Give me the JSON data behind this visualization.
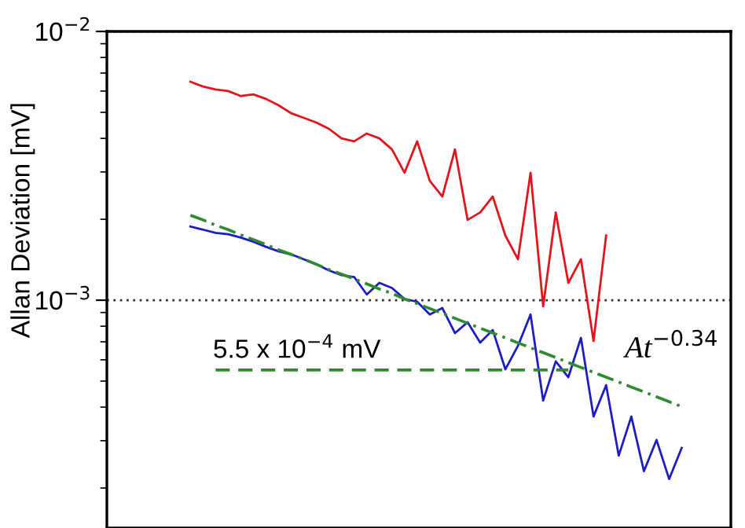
{
  "chart_data": {
    "type": "line",
    "ylabel": "Allan Deviation [mV]",
    "log": "y",
    "grid": "y",
    "tick_labels": "y",
    "categories": [
      null,
      null,
      null,
      null,
      null,
      null,
      null,
      null,
      null,
      null,
      null,
      null,
      null,
      null,
      null,
      null,
      null,
      null,
      null,
      null,
      null,
      null,
      null,
      null,
      null,
      null,
      null,
      null,
      null,
      null,
      null,
      null,
      null,
      null,
      null,
      null,
      null,
      null,
      null,
      null
    ],
    "ylim": [
      0.000142,
      0.01
    ],
    "yticks": [
      {
        "value": 0.01,
        "label": "10$^{−2}$"
      },
      {
        "value": 0.001,
        "label": "10$^{−3}$"
      }
    ],
    "series": [
      {
        "color": "#e3141c",
        "line_style": "solid",
        "values": [
          0.0065,
          0.00624,
          0.00608,
          0.006,
          0.00575,
          0.00583,
          0.00561,
          0.00531,
          0.00496,
          0.00477,
          0.00458,
          0.00434,
          0.004,
          0.0039,
          0.00417,
          0.004,
          0.00364,
          0.00298,
          0.0039,
          0.00278,
          0.00243,
          0.00364,
          0.00199,
          0.00212,
          0.00243,
          0.00174,
          0.00142,
          0.00298,
          0.000948,
          0.00212,
          0.00116,
          0.00142,
          0.000705,
          0.00174,
          null,
          null,
          null,
          null,
          null,
          null
        ]
      },
      {
        "color": "#1c1cc8",
        "line_style": "solid",
        "values": [
          0.00188,
          0.00183,
          0.00178,
          0.00176,
          0.00171,
          0.00165,
          0.00158,
          0.00152,
          0.00148,
          0.00142,
          0.00136,
          0.00129,
          0.00124,
          0.00122,
          0.00105,
          0.00116,
          0.00111,
          0.00101,
          0.000987,
          0.000885,
          0.000935,
          0.000754,
          0.000828,
          0.000695,
          0.000774,
          0.000553,
          0.000676,
          0.000885,
          0.000423,
          0.000592,
          0.000517,
          0.000724,
          0.000369,
          0.000483,
          0.000264,
          0.000369,
          0.000231,
          0.000302,
          0.000216,
          0.000282
        ]
      },
      {
        "color": "#2e8b2e",
        "line_style": "dashdot",
        "values": [
          0.00207,
          0.00199,
          0.0019,
          0.00183,
          0.00175,
          0.00168,
          0.00161,
          0.00154,
          0.00148,
          0.00142,
          0.00136,
          0.0013,
          0.00125,
          0.0012,
          0.00115,
          0.0011,
          0.00106,
          0.00101,
          0.000971,
          0.000931,
          0.000893,
          0.000856,
          0.000821,
          0.000787,
          0.000755,
          0.000724,
          0.000694,
          0.000665,
          0.000638,
          0.000612,
          0.000586,
          0.000562,
          0.000539,
          0.000517,
          0.000496,
          0.000475,
          0.000456,
          0.000437,
          0.000419,
          0.000402
        ]
      },
      {
        "color": "#2e8b2e",
        "line_style": "dashed",
        "values": [
          null,
          null,
          0.00055,
          0.00055,
          0.00055,
          0.00055,
          0.00055,
          0.00055,
          0.00055,
          0.00055,
          0.00055,
          0.00055,
          0.00055,
          0.00055,
          0.00055,
          0.00055,
          0.00055,
          0.00055,
          0.00055,
          0.00055,
          0.00055,
          0.00055,
          0.00055,
          0.00055,
          0.00055,
          0.00055,
          0.00055,
          0.00055,
          0.00055,
          0.00055,
          0.00055,
          null,
          null,
          null,
          null,
          null,
          null,
          null,
          null,
          null
        ]
      }
    ],
    "annotations": [
      {
        "text": "5.5 x 10$^{−4}$ mV",
        "y": 0.00055
      },
      "At$^{−0.34}$"
    ]
  }
}
